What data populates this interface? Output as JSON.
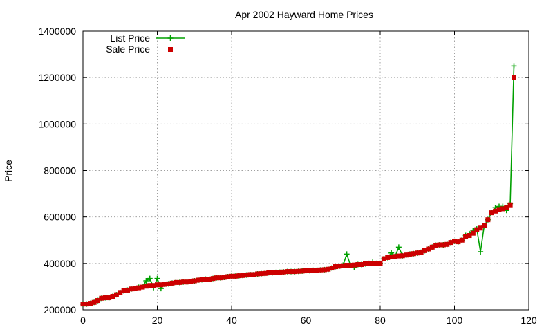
{
  "chart_data": {
    "type": "line",
    "title": "Apr 2002 Hayward Home Prices",
    "xlabel": "",
    "ylabel": "Price",
    "xlim": [
      0,
      120
    ],
    "ylim": [
      200000,
      1400000
    ],
    "xticks": [
      "0",
      "20",
      "40",
      "60",
      "80",
      "100",
      "120"
    ],
    "yticks": [
      "200000",
      "400000",
      "600000",
      "800000",
      "1000000",
      "1200000",
      "1400000"
    ],
    "grid": true,
    "legend": {
      "position": "top-left"
    },
    "series": [
      {
        "name": "List Price",
        "type": "line",
        "marker": "plus",
        "color": "#00a000",
        "x": [
          0,
          1,
          2,
          3,
          4,
          5,
          6,
          7,
          8,
          9,
          10,
          11,
          12,
          13,
          14,
          15,
          16,
          17,
          18,
          19,
          20,
          21,
          22,
          23,
          24,
          25,
          26,
          27,
          28,
          29,
          30,
          31,
          32,
          33,
          34,
          35,
          36,
          37,
          38,
          39,
          40,
          41,
          42,
          43,
          44,
          45,
          46,
          47,
          48,
          49,
          50,
          51,
          52,
          53,
          54,
          55,
          56,
          57,
          58,
          59,
          60,
          61,
          62,
          63,
          64,
          65,
          66,
          67,
          68,
          69,
          70,
          71,
          72,
          73,
          74,
          75,
          76,
          77,
          78,
          79,
          80,
          81,
          82,
          83,
          84,
          85,
          86,
          87,
          88,
          89,
          90,
          91,
          92,
          93,
          94,
          95,
          96,
          97,
          98,
          99,
          100,
          101,
          102,
          103,
          104,
          105,
          106,
          107,
          108,
          109,
          110,
          111,
          112,
          113,
          114,
          115,
          116
        ],
        "values": [
          225000,
          225000,
          228000,
          232000,
          240000,
          250000,
          252000,
          252000,
          258000,
          265000,
          275000,
          282000,
          285000,
          290000,
          292000,
          297000,
          300000,
          325000,
          335000,
          296000,
          335000,
          292000,
          310000,
          312000,
          315000,
          318000,
          318000,
          320000,
          320000,
          322000,
          325000,
          328000,
          330000,
          332000,
          332000,
          335000,
          338000,
          338000,
          340000,
          343000,
          345000,
          345000,
          347000,
          348000,
          350000,
          352000,
          352000,
          355000,
          356000,
          357000,
          360000,
          360000,
          362000,
          362000,
          363000,
          365000,
          365000,
          365000,
          366000,
          367000,
          369000,
          369000,
          370000,
          371000,
          372000,
          373000,
          375000,
          380000,
          386000,
          388000,
          392000,
          440000,
          392000,
          382000,
          395000,
          395000,
          398000,
          400000,
          407000,
          400000,
          400000,
          420000,
          425000,
          445000,
          430000,
          470000,
          433000,
          436000,
          440000,
          442000,
          445000,
          448000,
          455000,
          462000,
          470000,
          478000,
          480000,
          480000,
          482000,
          490000,
          495000,
          493000,
          500000,
          520000,
          528000,
          540000,
          548000,
          450000,
          562000,
          588000,
          620000,
          640000,
          645000,
          645000,
          628000,
          657000,
          1250000
        ]
      },
      {
        "name": "Sale Price",
        "type": "scatter",
        "marker": "square",
        "color": "#cc0000",
        "x": [
          0,
          1,
          2,
          3,
          4,
          5,
          6,
          7,
          8,
          9,
          10,
          11,
          12,
          13,
          14,
          15,
          16,
          17,
          18,
          19,
          20,
          21,
          22,
          23,
          24,
          25,
          26,
          27,
          28,
          29,
          30,
          31,
          32,
          33,
          34,
          35,
          36,
          37,
          38,
          39,
          40,
          41,
          42,
          43,
          44,
          45,
          46,
          47,
          48,
          49,
          50,
          51,
          52,
          53,
          54,
          55,
          56,
          57,
          58,
          59,
          60,
          61,
          62,
          63,
          64,
          65,
          66,
          67,
          68,
          69,
          70,
          71,
          72,
          73,
          74,
          75,
          76,
          77,
          78,
          79,
          80,
          81,
          82,
          83,
          84,
          85,
          86,
          87,
          88,
          89,
          90,
          91,
          92,
          93,
          94,
          95,
          96,
          97,
          98,
          99,
          100,
          101,
          102,
          103,
          104,
          105,
          106,
          107,
          108,
          109,
          110,
          111,
          112,
          113,
          114,
          115,
          116
        ],
        "values": [
          225000,
          225000,
          228000,
          232000,
          240000,
          250000,
          252000,
          252000,
          258000,
          265000,
          275000,
          282000,
          285000,
          290000,
          292000,
          295000,
          298000,
          302000,
          305000,
          305000,
          308000,
          308000,
          310000,
          312000,
          315000,
          318000,
          318000,
          320000,
          320000,
          322000,
          325000,
          328000,
          330000,
          332000,
          332000,
          335000,
          338000,
          338000,
          340000,
          343000,
          345000,
          345000,
          347000,
          348000,
          350000,
          352000,
          352000,
          355000,
          356000,
          357000,
          360000,
          360000,
          362000,
          362000,
          363000,
          365000,
          365000,
          365000,
          366000,
          367000,
          369000,
          369000,
          370000,
          371000,
          372000,
          373000,
          375000,
          380000,
          386000,
          388000,
          390000,
          392000,
          392000,
          393000,
          395000,
          395000,
          398000,
          400000,
          400000,
          400000,
          400000,
          420000,
          425000,
          428000,
          430000,
          432000,
          433000,
          436000,
          440000,
          442000,
          445000,
          448000,
          455000,
          462000,
          470000,
          478000,
          480000,
          480000,
          482000,
          490000,
          495000,
          493000,
          500000,
          515000,
          520000,
          530000,
          545000,
          552000,
          562000,
          588000,
          618000,
          625000,
          632000,
          635000,
          640000,
          652000,
          1200000
        ]
      }
    ]
  }
}
